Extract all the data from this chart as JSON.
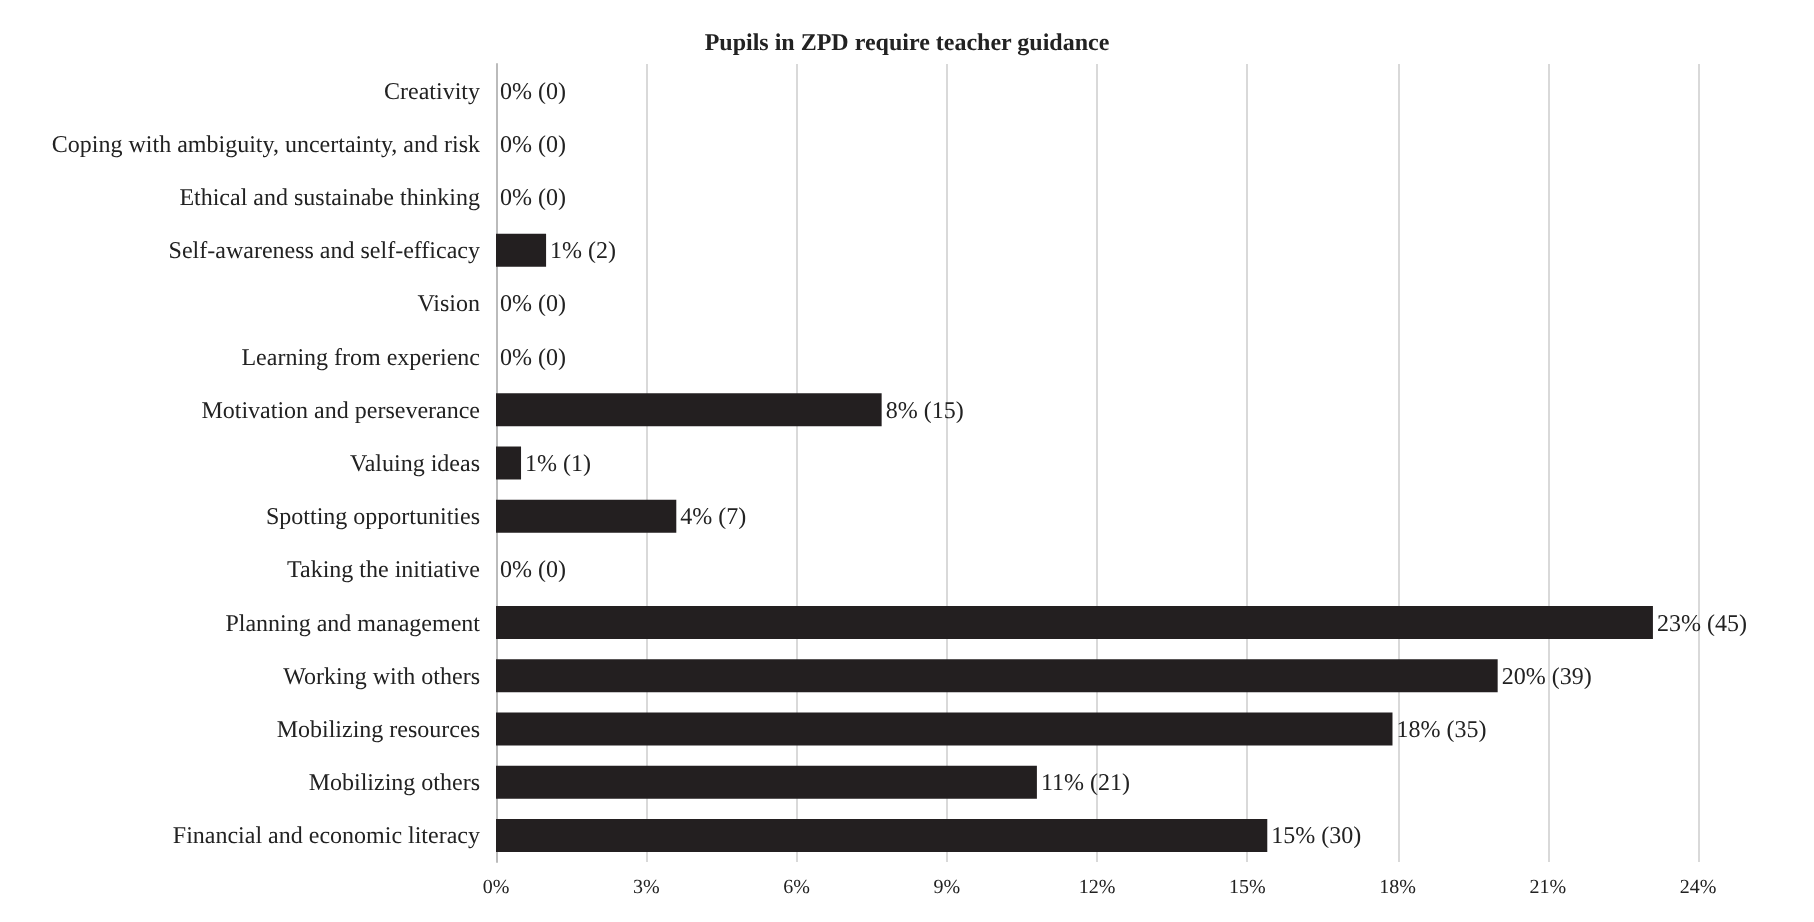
{
  "chart_data": {
    "type": "bar",
    "orientation": "horizontal",
    "title": "Pupils in ZPD require teacher guidance",
    "categories": [
      "Creativity",
      "Coping with ambiguity, uncertainty, and risk",
      "Ethical and sustainabe thinking",
      "Self-awareness and self-efficacy",
      "Vision",
      "Learning from experienc",
      "Motivation and perseverance",
      "Valuing ideas",
      "Spotting opportunities",
      "Taking the initiative",
      "Planning and management",
      "Working with others",
      "Mobilizing resources",
      "Mobilizing others",
      "Financial and economic literacy"
    ],
    "values": [
      0,
      0,
      0,
      1.0,
      0,
      0,
      7.7,
      0.5,
      3.6,
      0,
      23.1,
      20.0,
      17.9,
      10.8,
      15.4
    ],
    "value_labels": [
      "0% (0)",
      "0% (0)",
      "0% (0)",
      "1% (2)",
      "0% (0)",
      "0% (0)",
      "8% (15)",
      "1% (1)",
      "4% (7)",
      "0% (0)",
      "23% (45)",
      "20% (39)",
      "18% (35)",
      "11% (21)",
      "15% (30)"
    ],
    "color": "#231f20",
    "xlim": [
      0,
      24
    ],
    "xticks": [
      {
        "value": 0,
        "label": "0%"
      },
      {
        "value": 3,
        "label": "3%"
      },
      {
        "value": 6,
        "label": "6%"
      },
      {
        "value": 9,
        "label": "9%"
      },
      {
        "value": 12,
        "label": "12%"
      },
      {
        "value": 15,
        "label": "15%"
      },
      {
        "value": 18,
        "label": "18%"
      },
      {
        "value": 21,
        "label": "21%"
      },
      {
        "value": 24,
        "label": "24%"
      }
    ],
    "grid": "x"
  }
}
